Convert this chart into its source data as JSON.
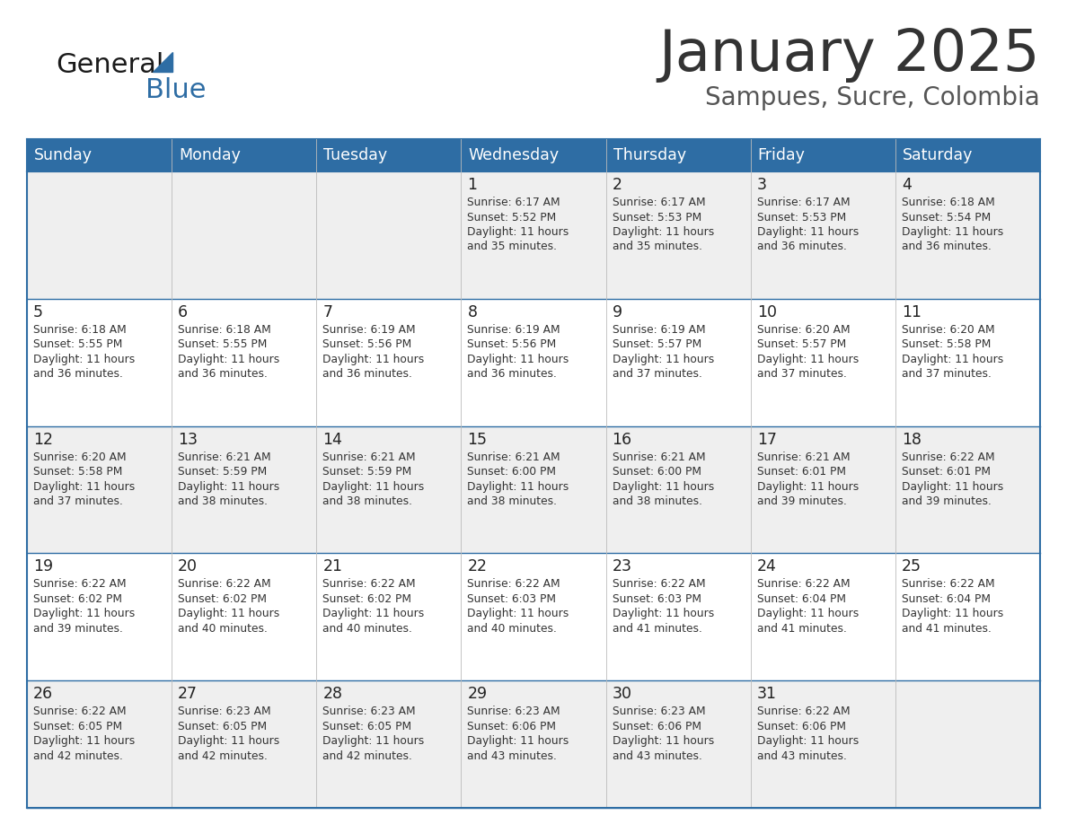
{
  "title": "January 2025",
  "subtitle": "Sampues, Sucre, Colombia",
  "days_of_week": [
    "Sunday",
    "Monday",
    "Tuesday",
    "Wednesday",
    "Thursday",
    "Friday",
    "Saturday"
  ],
  "header_bg": "#2E6DA4",
  "header_text": "#FFFFFF",
  "cell_bg_light": "#EFEFEF",
  "cell_bg_white": "#FFFFFF",
  "cell_border": "#2E6DA4",
  "title_color": "#333333",
  "subtitle_color": "#555555",
  "day_number_color": "#222222",
  "cell_text_color": "#333333",
  "calendar_data": [
    [
      {
        "day": "",
        "sunrise": "",
        "sunset": "",
        "daylight_line1": "",
        "daylight_line2": ""
      },
      {
        "day": "",
        "sunrise": "",
        "sunset": "",
        "daylight_line1": "",
        "daylight_line2": ""
      },
      {
        "day": "",
        "sunrise": "",
        "sunset": "",
        "daylight_line1": "",
        "daylight_line2": ""
      },
      {
        "day": "1",
        "sunrise": "6:17 AM",
        "sunset": "5:52 PM",
        "daylight_line1": "Daylight: 11 hours",
        "daylight_line2": "and 35 minutes."
      },
      {
        "day": "2",
        "sunrise": "6:17 AM",
        "sunset": "5:53 PM",
        "daylight_line1": "Daylight: 11 hours",
        "daylight_line2": "and 35 minutes."
      },
      {
        "day": "3",
        "sunrise": "6:17 AM",
        "sunset": "5:53 PM",
        "daylight_line1": "Daylight: 11 hours",
        "daylight_line2": "and 36 minutes."
      },
      {
        "day": "4",
        "sunrise": "6:18 AM",
        "sunset": "5:54 PM",
        "daylight_line1": "Daylight: 11 hours",
        "daylight_line2": "and 36 minutes."
      }
    ],
    [
      {
        "day": "5",
        "sunrise": "6:18 AM",
        "sunset": "5:55 PM",
        "daylight_line1": "Daylight: 11 hours",
        "daylight_line2": "and 36 minutes."
      },
      {
        "day": "6",
        "sunrise": "6:18 AM",
        "sunset": "5:55 PM",
        "daylight_line1": "Daylight: 11 hours",
        "daylight_line2": "and 36 minutes."
      },
      {
        "day": "7",
        "sunrise": "6:19 AM",
        "sunset": "5:56 PM",
        "daylight_line1": "Daylight: 11 hours",
        "daylight_line2": "and 36 minutes."
      },
      {
        "day": "8",
        "sunrise": "6:19 AM",
        "sunset": "5:56 PM",
        "daylight_line1": "Daylight: 11 hours",
        "daylight_line2": "and 36 minutes."
      },
      {
        "day": "9",
        "sunrise": "6:19 AM",
        "sunset": "5:57 PM",
        "daylight_line1": "Daylight: 11 hours",
        "daylight_line2": "and 37 minutes."
      },
      {
        "day": "10",
        "sunrise": "6:20 AM",
        "sunset": "5:57 PM",
        "daylight_line1": "Daylight: 11 hours",
        "daylight_line2": "and 37 minutes."
      },
      {
        "day": "11",
        "sunrise": "6:20 AM",
        "sunset": "5:58 PM",
        "daylight_line1": "Daylight: 11 hours",
        "daylight_line2": "and 37 minutes."
      }
    ],
    [
      {
        "day": "12",
        "sunrise": "6:20 AM",
        "sunset": "5:58 PM",
        "daylight_line1": "Daylight: 11 hours",
        "daylight_line2": "and 37 minutes."
      },
      {
        "day": "13",
        "sunrise": "6:21 AM",
        "sunset": "5:59 PM",
        "daylight_line1": "Daylight: 11 hours",
        "daylight_line2": "and 38 minutes."
      },
      {
        "day": "14",
        "sunrise": "6:21 AM",
        "sunset": "5:59 PM",
        "daylight_line1": "Daylight: 11 hours",
        "daylight_line2": "and 38 minutes."
      },
      {
        "day": "15",
        "sunrise": "6:21 AM",
        "sunset": "6:00 PM",
        "daylight_line1": "Daylight: 11 hours",
        "daylight_line2": "and 38 minutes."
      },
      {
        "day": "16",
        "sunrise": "6:21 AM",
        "sunset": "6:00 PM",
        "daylight_line1": "Daylight: 11 hours",
        "daylight_line2": "and 38 minutes."
      },
      {
        "day": "17",
        "sunrise": "6:21 AM",
        "sunset": "6:01 PM",
        "daylight_line1": "Daylight: 11 hours",
        "daylight_line2": "and 39 minutes."
      },
      {
        "day": "18",
        "sunrise": "6:22 AM",
        "sunset": "6:01 PM",
        "daylight_line1": "Daylight: 11 hours",
        "daylight_line2": "and 39 minutes."
      }
    ],
    [
      {
        "day": "19",
        "sunrise": "6:22 AM",
        "sunset": "6:02 PM",
        "daylight_line1": "Daylight: 11 hours",
        "daylight_line2": "and 39 minutes."
      },
      {
        "day": "20",
        "sunrise": "6:22 AM",
        "sunset": "6:02 PM",
        "daylight_line1": "Daylight: 11 hours",
        "daylight_line2": "and 40 minutes."
      },
      {
        "day": "21",
        "sunrise": "6:22 AM",
        "sunset": "6:02 PM",
        "daylight_line1": "Daylight: 11 hours",
        "daylight_line2": "and 40 minutes."
      },
      {
        "day": "22",
        "sunrise": "6:22 AM",
        "sunset": "6:03 PM",
        "daylight_line1": "Daylight: 11 hours",
        "daylight_line2": "and 40 minutes."
      },
      {
        "day": "23",
        "sunrise": "6:22 AM",
        "sunset": "6:03 PM",
        "daylight_line1": "Daylight: 11 hours",
        "daylight_line2": "and 41 minutes."
      },
      {
        "day": "24",
        "sunrise": "6:22 AM",
        "sunset": "6:04 PM",
        "daylight_line1": "Daylight: 11 hours",
        "daylight_line2": "and 41 minutes."
      },
      {
        "day": "25",
        "sunrise": "6:22 AM",
        "sunset": "6:04 PM",
        "daylight_line1": "Daylight: 11 hours",
        "daylight_line2": "and 41 minutes."
      }
    ],
    [
      {
        "day": "26",
        "sunrise": "6:22 AM",
        "sunset": "6:05 PM",
        "daylight_line1": "Daylight: 11 hours",
        "daylight_line2": "and 42 minutes."
      },
      {
        "day": "27",
        "sunrise": "6:23 AM",
        "sunset": "6:05 PM",
        "daylight_line1": "Daylight: 11 hours",
        "daylight_line2": "and 42 minutes."
      },
      {
        "day": "28",
        "sunrise": "6:23 AM",
        "sunset": "6:05 PM",
        "daylight_line1": "Daylight: 11 hours",
        "daylight_line2": "and 42 minutes."
      },
      {
        "day": "29",
        "sunrise": "6:23 AM",
        "sunset": "6:06 PM",
        "daylight_line1": "Daylight: 11 hours",
        "daylight_line2": "and 43 minutes."
      },
      {
        "day": "30",
        "sunrise": "6:23 AM",
        "sunset": "6:06 PM",
        "daylight_line1": "Daylight: 11 hours",
        "daylight_line2": "and 43 minutes."
      },
      {
        "day": "31",
        "sunrise": "6:22 AM",
        "sunset": "6:06 PM",
        "daylight_line1": "Daylight: 11 hours",
        "daylight_line2": "and 43 minutes."
      },
      {
        "day": "",
        "sunrise": "",
        "sunset": "",
        "daylight_line1": "",
        "daylight_line2": ""
      }
    ]
  ]
}
